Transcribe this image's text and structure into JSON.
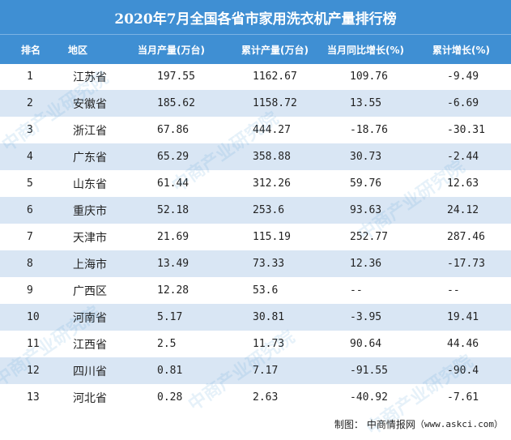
{
  "title": "2020年7月全国各省市家用洗衣机产量排行榜",
  "headers": [
    "排名",
    "地区",
    "当月产量(万台)",
    "累计产量(万台)",
    "当月同比增长(%)",
    "累计增长(%)"
  ],
  "rows": [
    [
      "1",
      "江苏省",
      "197.55",
      "1162.67",
      "109.76",
      "-9.49"
    ],
    [
      "2",
      "安徽省",
      "185.62",
      "1158.72",
      "13.55",
      "-6.69"
    ],
    [
      "3",
      "浙江省",
      "67.86",
      "444.27",
      "-18.76",
      "-30.31"
    ],
    [
      "4",
      "广东省",
      "65.29",
      "358.88",
      "30.73",
      "-2.44"
    ],
    [
      "5",
      "山东省",
      "61.44",
      "312.26",
      "59.76",
      "12.63"
    ],
    [
      "6",
      "重庆市",
      "52.18",
      "253.6",
      "93.63",
      "24.12"
    ],
    [
      "7",
      "天津市",
      "21.69",
      "115.19",
      "252.77",
      "287.46"
    ],
    [
      "8",
      "上海市",
      "13.49",
      "73.33",
      "12.36",
      "-17.73"
    ],
    [
      "9",
      "广西区",
      "12.28",
      "53.6",
      "--",
      "--"
    ],
    [
      "10",
      "河南省",
      "5.17",
      "30.81",
      "-3.95",
      "19.41"
    ],
    [
      "11",
      "江西省",
      "2.5",
      "11.73",
      "90.64",
      "44.46"
    ],
    [
      "12",
      "四川省",
      "0.81",
      "7.17",
      "-91.55",
      "-90.4"
    ],
    [
      "13",
      "河北省",
      "0.28",
      "2.63",
      "-40.92",
      "-7.61"
    ]
  ],
  "footer": {
    "label": "制图：",
    "source": "中商情报网",
    "url": "（www.askci.com）"
  },
  "watermark": "中商产业研究院",
  "colors": {
    "header": "#3f8fd3",
    "alt_row": "#d9e6f4"
  }
}
